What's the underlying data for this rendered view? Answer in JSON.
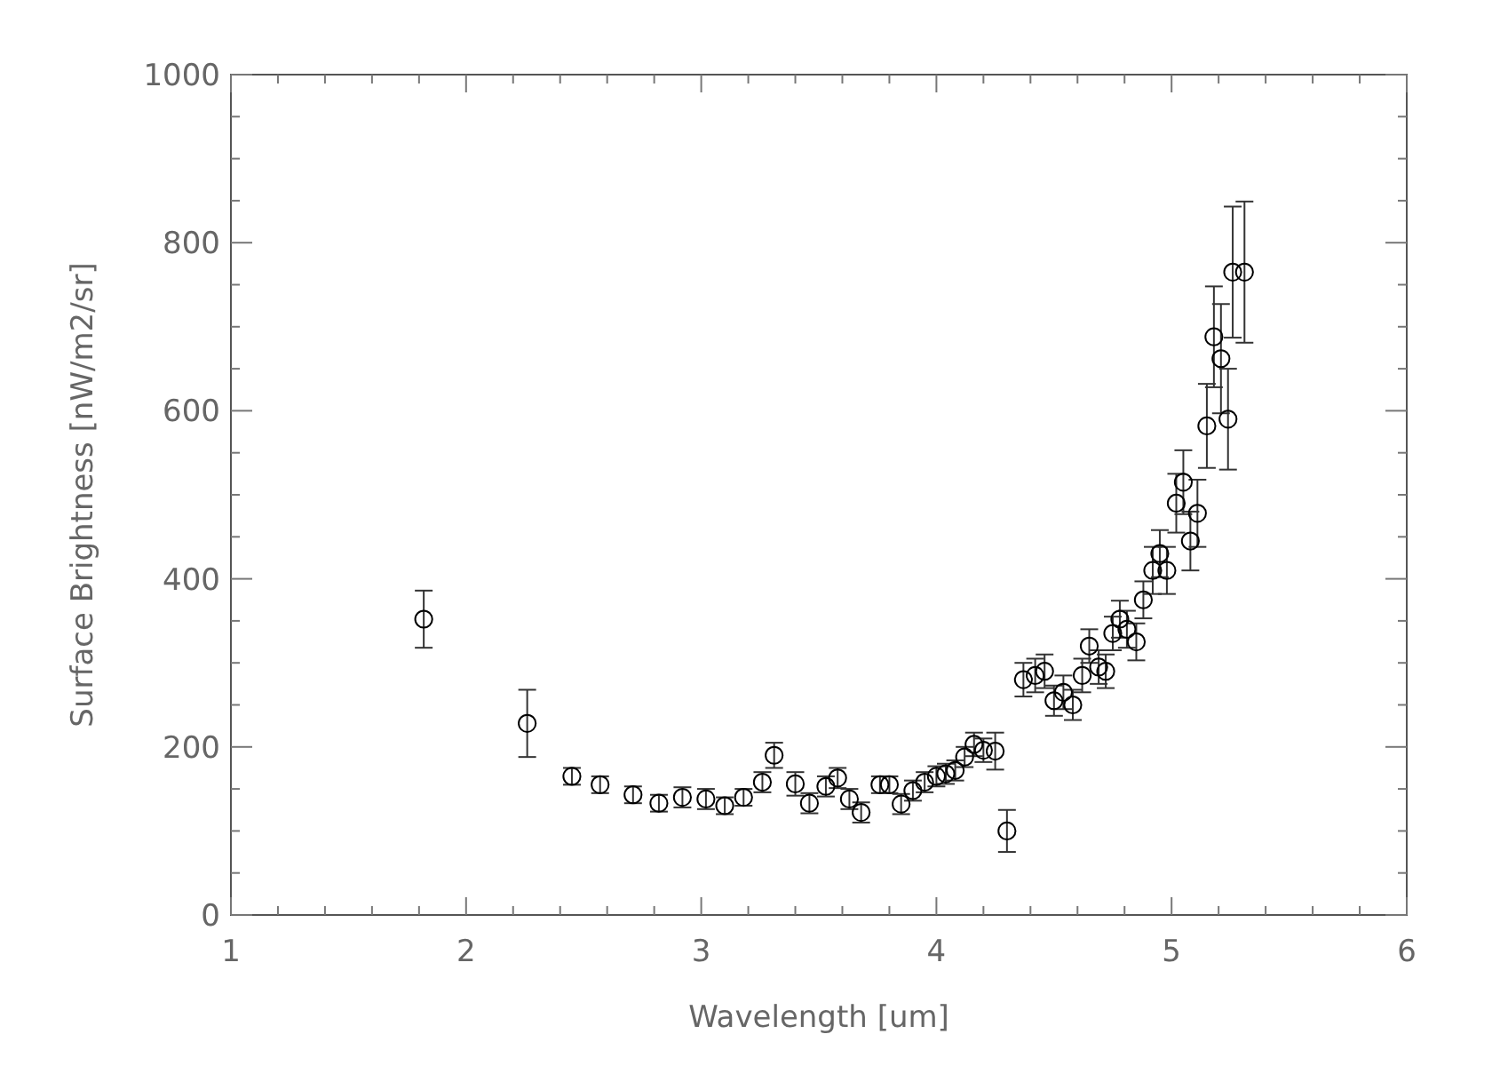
{
  "chart_data": {
    "type": "scatter",
    "xlabel": "Wavelength [um]",
    "ylabel": "Surface Brightness [nW/m2/sr]",
    "marker": "circle",
    "color": "#000000",
    "x": [
      1.82,
      2.26,
      2.45,
      2.57,
      2.71,
      2.82,
      2.92,
      3.02,
      3.1,
      3.18,
      3.26,
      3.31,
      3.4,
      3.46,
      3.53,
      3.58,
      3.63,
      3.68,
      3.76,
      3.8,
      3.85,
      3.9,
      3.95,
      4.0,
      4.04,
      4.08,
      4.12,
      4.16,
      4.2,
      4.25,
      4.3,
      4.37,
      4.42,
      4.46,
      4.5,
      4.54,
      4.58,
      4.62,
      4.65,
      4.69,
      4.72,
      4.75,
      4.78,
      4.81,
      4.85,
      4.88,
      4.92,
      4.95,
      4.98,
      5.02,
      5.05,
      5.08,
      5.11,
      5.15,
      5.18,
      5.21,
      5.24,
      5.26,
      5.31
    ],
    "values": [
      352,
      228,
      165,
      155,
      143,
      133,
      140,
      138,
      130,
      140,
      158,
      190,
      156,
      133,
      153,
      163,
      138,
      122,
      155,
      155,
      132,
      148,
      158,
      165,
      168,
      172,
      188,
      203,
      196,
      195,
      100,
      280,
      285,
      290,
      255,
      265,
      250,
      285,
      320,
      295,
      290,
      335,
      352,
      340,
      325,
      375,
      410,
      430,
      410,
      490,
      515,
      445,
      478,
      582,
      688,
      662,
      590,
      765,
      765
    ],
    "errors": [
      34,
      40,
      10,
      10,
      10,
      10,
      12,
      12,
      10,
      10,
      12,
      15,
      14,
      12,
      12,
      12,
      12,
      12,
      10,
      10,
      12,
      12,
      12,
      12,
      12,
      12,
      12,
      14,
      14,
      22,
      25,
      20,
      20,
      20,
      18,
      20,
      18,
      20,
      20,
      20,
      20,
      20,
      22,
      22,
      22,
      22,
      28,
      28,
      28,
      35,
      38,
      35,
      40,
      50,
      60,
      65,
      60,
      78,
      84
    ],
    "xlim": [
      1,
      6
    ],
    "ylim": [
      0,
      1000
    ],
    "xticks": [
      1,
      {
        "value": 1.2,
        "label": null
      },
      {
        "value": 1.4,
        "label": null
      },
      {
        "value": 1.6,
        "label": null
      },
      {
        "value": 1.8,
        "label": null
      },
      2,
      {
        "value": 2.2,
        "label": null
      },
      {
        "value": 2.4,
        "label": null
      },
      {
        "value": 2.6,
        "label": null
      },
      {
        "value": 2.8,
        "label": null
      },
      3,
      {
        "value": 3.2,
        "label": null
      },
      {
        "value": 3.4,
        "label": null
      },
      {
        "value": 3.6,
        "label": null
      },
      {
        "value": 3.8,
        "label": null
      },
      4,
      {
        "value": 4.2,
        "label": null
      },
      {
        "value": 4.4,
        "label": null
      },
      {
        "value": 4.6,
        "label": null
      },
      {
        "value": 4.8,
        "label": null
      },
      5,
      {
        "value": 5.2,
        "label": null
      },
      {
        "value": 5.4,
        "label": null
      },
      {
        "value": 5.6,
        "label": null
      },
      {
        "value": 5.8,
        "label": null
      },
      6
    ],
    "yticks": [
      0,
      {
        "value": 50,
        "label": null
      },
      {
        "value": 100,
        "label": null
      },
      {
        "value": 150,
        "label": null
      },
      200,
      {
        "value": 250,
        "label": null
      },
      {
        "value": 300,
        "label": null
      },
      {
        "value": 350,
        "label": null
      },
      400,
      {
        "value": 450,
        "label": null
      },
      {
        "value": 500,
        "label": null
      },
      {
        "value": 550,
        "label": null
      },
      600,
      {
        "value": 650,
        "label": null
      },
      {
        "value": 700,
        "label": null
      },
      {
        "value": 750,
        "label": null
      },
      800,
      {
        "value": 850,
        "label": null
      },
      {
        "value": 900,
        "label": null
      },
      {
        "value": 950,
        "label": null
      },
      1000
    ],
    "grid": false
  }
}
